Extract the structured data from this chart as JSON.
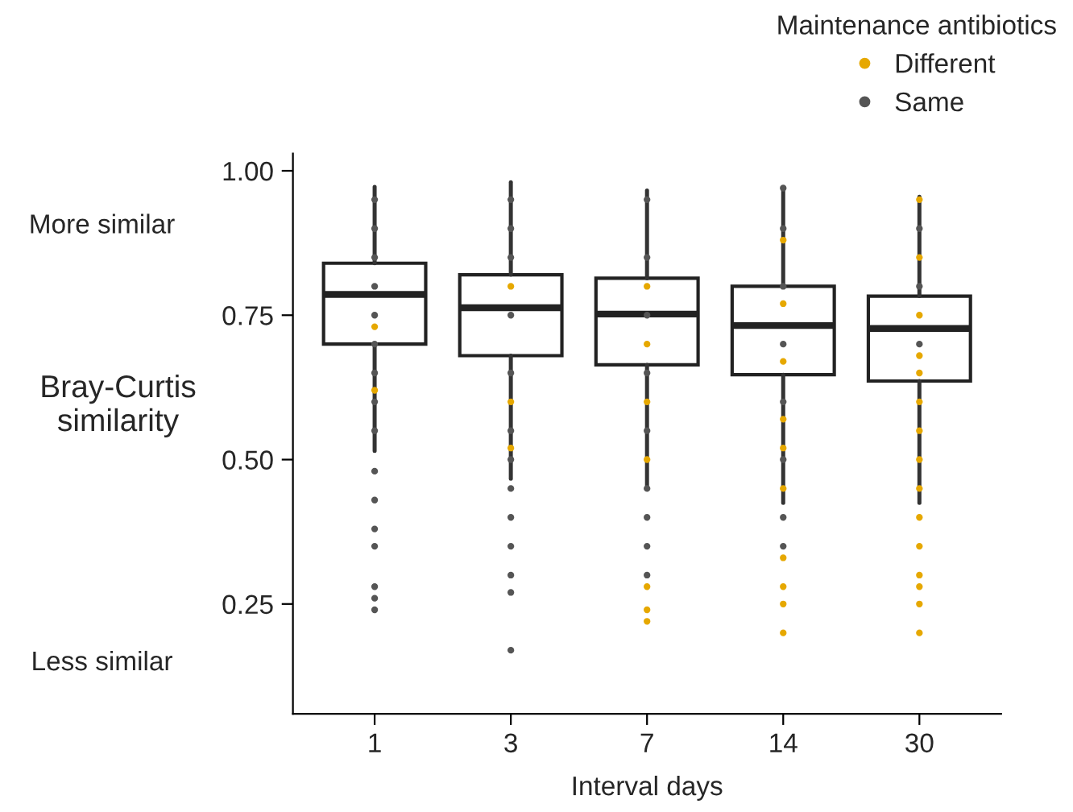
{
  "chart_data": {
    "type": "box",
    "categories": [
      "1",
      "3",
      "7",
      "14",
      "30"
    ],
    "xlabel": "Interval days",
    "ylabel": "Bray-Curtis\nsimilarity",
    "legend_title": "Maintenance antibiotics",
    "annotations": [
      "More similar",
      "Less similar"
    ],
    "ylim": [
      0.06,
      1.03
    ],
    "yticks": [
      {
        "value": 0.25,
        "label": "0.25"
      },
      {
        "value": 0.5,
        "label": "0.50"
      },
      {
        "value": 0.75,
        "label": "0.75"
      },
      {
        "value": 1.0,
        "label": "1.00"
      }
    ],
    "grid": false,
    "legend": "top right",
    "marker": "circle",
    "boxes": [
      {
        "low": 0.515,
        "q1": 0.7,
        "median": 0.786,
        "q3": 0.84,
        "high": 0.972
      },
      {
        "low": 0.467,
        "q1": 0.68,
        "median": 0.763,
        "q3": 0.82,
        "high": 0.98
      },
      {
        "low": 0.455,
        "q1": 0.664,
        "median": 0.752,
        "q3": 0.814,
        "high": 0.966
      },
      {
        "low": 0.425,
        "q1": 0.647,
        "median": 0.732,
        "q3": 0.8,
        "high": 0.97
      },
      {
        "low": 0.425,
        "q1": 0.636,
        "median": 0.727,
        "q3": 0.783,
        "high": 0.955
      }
    ],
    "series": [
      {
        "name": "Different",
        "type": "scatter",
        "color": "#e6a800",
        "x": [
          "1",
          "1",
          "3",
          "3",
          "3",
          "7",
          "7",
          "7",
          "7",
          "7",
          "7",
          "7",
          "14",
          "14",
          "14",
          "14",
          "14",
          "14",
          "14",
          "14",
          "14",
          "14",
          "30",
          "30",
          "30",
          "30",
          "30",
          "30",
          "30",
          "30",
          "30",
          "30",
          "30",
          "30",
          "30",
          "30",
          "30"
        ],
        "values": [
          0.73,
          0.62,
          0.8,
          0.6,
          0.52,
          0.8,
          0.7,
          0.6,
          0.5,
          0.28,
          0.24,
          0.22,
          0.88,
          0.77,
          0.67,
          0.57,
          0.52,
          0.45,
          0.33,
          0.28,
          0.25,
          0.2,
          0.95,
          0.85,
          0.75,
          0.68,
          0.65,
          0.6,
          0.55,
          0.5,
          0.45,
          0.4,
          0.35,
          0.3,
          0.28,
          0.25,
          0.2
        ]
      },
      {
        "name": "Same",
        "type": "scatter",
        "color": "#555555",
        "x": [
          "1",
          "1",
          "1",
          "1",
          "1",
          "1",
          "1",
          "1",
          "1",
          "1",
          "1",
          "1",
          "1",
          "1",
          "1",
          "1",
          "3",
          "3",
          "3",
          "3",
          "3",
          "3",
          "3",
          "3",
          "3",
          "3",
          "3",
          "3",
          "3",
          "7",
          "7",
          "7",
          "7",
          "7",
          "7",
          "7",
          "7",
          "7",
          "14",
          "14",
          "14",
          "14",
          "14",
          "14",
          "14",
          "14",
          "30",
          "30",
          "30"
        ],
        "values": [
          0.95,
          0.9,
          0.85,
          0.8,
          0.75,
          0.7,
          0.65,
          0.6,
          0.55,
          0.48,
          0.43,
          0.38,
          0.35,
          0.28,
          0.26,
          0.24,
          0.95,
          0.9,
          0.85,
          0.75,
          0.65,
          0.55,
          0.5,
          0.45,
          0.4,
          0.35,
          0.3,
          0.27,
          0.17,
          0.95,
          0.85,
          0.75,
          0.65,
          0.55,
          0.45,
          0.4,
          0.35,
          0.3,
          0.97,
          0.9,
          0.8,
          0.7,
          0.6,
          0.5,
          0.4,
          0.35,
          0.9,
          0.8,
          0.7
        ]
      }
    ]
  }
}
